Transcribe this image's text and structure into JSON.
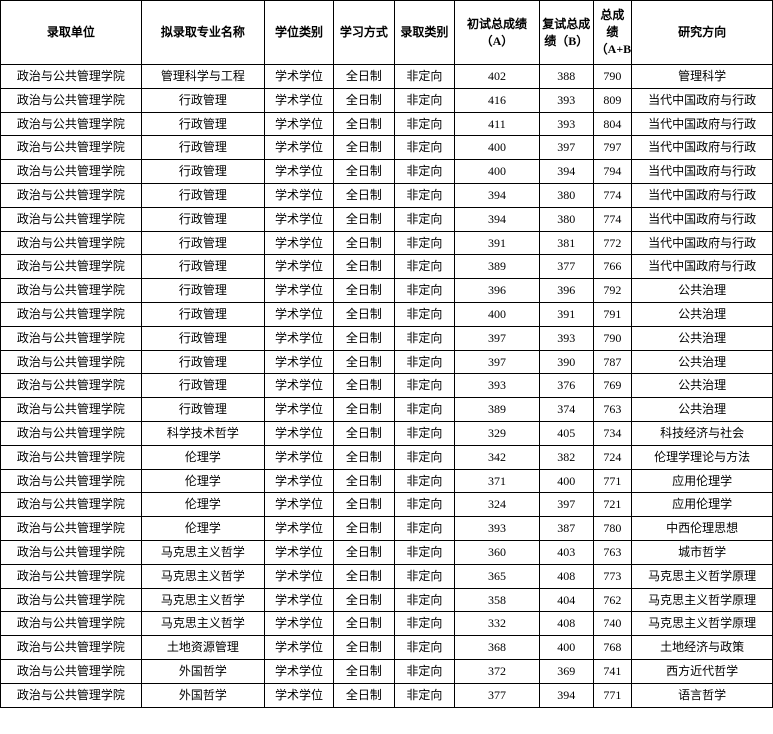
{
  "headers": {
    "dept": "录取单位",
    "major": "拟录取专业名称",
    "degree": "学位类别",
    "mode": "学习方式",
    "type": "录取类别",
    "a": "初试总成绩（A）",
    "b": "复试总成绩（B）",
    "ab": "总成绩（A+B）",
    "dir": "研究方向"
  },
  "rows": [
    {
      "dept": "政治与公共管理学院",
      "major": "管理科学与工程",
      "degree": "学术学位",
      "mode": "全日制",
      "type": "非定向",
      "a": "402",
      "b": "388",
      "ab": "790",
      "dir": "管理科学"
    },
    {
      "dept": "政治与公共管理学院",
      "major": "行政管理",
      "degree": "学术学位",
      "mode": "全日制",
      "type": "非定向",
      "a": "416",
      "b": "393",
      "ab": "809",
      "dir": "当代中国政府与行政"
    },
    {
      "dept": "政治与公共管理学院",
      "major": "行政管理",
      "degree": "学术学位",
      "mode": "全日制",
      "type": "非定向",
      "a": "411",
      "b": "393",
      "ab": "804",
      "dir": "当代中国政府与行政"
    },
    {
      "dept": "政治与公共管理学院",
      "major": "行政管理",
      "degree": "学术学位",
      "mode": "全日制",
      "type": "非定向",
      "a": "400",
      "b": "397",
      "ab": "797",
      "dir": "当代中国政府与行政"
    },
    {
      "dept": "政治与公共管理学院",
      "major": "行政管理",
      "degree": "学术学位",
      "mode": "全日制",
      "type": "非定向",
      "a": "400",
      "b": "394",
      "ab": "794",
      "dir": "当代中国政府与行政"
    },
    {
      "dept": "政治与公共管理学院",
      "major": "行政管理",
      "degree": "学术学位",
      "mode": "全日制",
      "type": "非定向",
      "a": "394",
      "b": "380",
      "ab": "774",
      "dir": "当代中国政府与行政"
    },
    {
      "dept": "政治与公共管理学院",
      "major": "行政管理",
      "degree": "学术学位",
      "mode": "全日制",
      "type": "非定向",
      "a": "394",
      "b": "380",
      "ab": "774",
      "dir": "当代中国政府与行政"
    },
    {
      "dept": "政治与公共管理学院",
      "major": "行政管理",
      "degree": "学术学位",
      "mode": "全日制",
      "type": "非定向",
      "a": "391",
      "b": "381",
      "ab": "772",
      "dir": "当代中国政府与行政"
    },
    {
      "dept": "政治与公共管理学院",
      "major": "行政管理",
      "degree": "学术学位",
      "mode": "全日制",
      "type": "非定向",
      "a": "389",
      "b": "377",
      "ab": "766",
      "dir": "当代中国政府与行政"
    },
    {
      "dept": "政治与公共管理学院",
      "major": "行政管理",
      "degree": "学术学位",
      "mode": "全日制",
      "type": "非定向",
      "a": "396",
      "b": "396",
      "ab": "792",
      "dir": "公共治理"
    },
    {
      "dept": "政治与公共管理学院",
      "major": "行政管理",
      "degree": "学术学位",
      "mode": "全日制",
      "type": "非定向",
      "a": "400",
      "b": "391",
      "ab": "791",
      "dir": "公共治理"
    },
    {
      "dept": "政治与公共管理学院",
      "major": "行政管理",
      "degree": "学术学位",
      "mode": "全日制",
      "type": "非定向",
      "a": "397",
      "b": "393",
      "ab": "790",
      "dir": "公共治理"
    },
    {
      "dept": "政治与公共管理学院",
      "major": "行政管理",
      "degree": "学术学位",
      "mode": "全日制",
      "type": "非定向",
      "a": "397",
      "b": "390",
      "ab": "787",
      "dir": "公共治理"
    },
    {
      "dept": "政治与公共管理学院",
      "major": "行政管理",
      "degree": "学术学位",
      "mode": "全日制",
      "type": "非定向",
      "a": "393",
      "b": "376",
      "ab": "769",
      "dir": "公共治理"
    },
    {
      "dept": "政治与公共管理学院",
      "major": "行政管理",
      "degree": "学术学位",
      "mode": "全日制",
      "type": "非定向",
      "a": "389",
      "b": "374",
      "ab": "763",
      "dir": "公共治理"
    },
    {
      "dept": "政治与公共管理学院",
      "major": "科学技术哲学",
      "degree": "学术学位",
      "mode": "全日制",
      "type": "非定向",
      "a": "329",
      "b": "405",
      "ab": "734",
      "dir": "科技经济与社会"
    },
    {
      "dept": "政治与公共管理学院",
      "major": "伦理学",
      "degree": "学术学位",
      "mode": "全日制",
      "type": "非定向",
      "a": "342",
      "b": "382",
      "ab": "724",
      "dir": "伦理学理论与方法"
    },
    {
      "dept": "政治与公共管理学院",
      "major": "伦理学",
      "degree": "学术学位",
      "mode": "全日制",
      "type": "非定向",
      "a": "371",
      "b": "400",
      "ab": "771",
      "dir": "应用伦理学"
    },
    {
      "dept": "政治与公共管理学院",
      "major": "伦理学",
      "degree": "学术学位",
      "mode": "全日制",
      "type": "非定向",
      "a": "324",
      "b": "397",
      "ab": "721",
      "dir": "应用伦理学"
    },
    {
      "dept": "政治与公共管理学院",
      "major": "伦理学",
      "degree": "学术学位",
      "mode": "全日制",
      "type": "非定向",
      "a": "393",
      "b": "387",
      "ab": "780",
      "dir": "中西伦理思想"
    },
    {
      "dept": "政治与公共管理学院",
      "major": "马克思主义哲学",
      "degree": "学术学位",
      "mode": "全日制",
      "type": "非定向",
      "a": "360",
      "b": "403",
      "ab": "763",
      "dir": "城市哲学"
    },
    {
      "dept": "政治与公共管理学院",
      "major": "马克思主义哲学",
      "degree": "学术学位",
      "mode": "全日制",
      "type": "非定向",
      "a": "365",
      "b": "408",
      "ab": "773",
      "dir": "马克思主义哲学原理"
    },
    {
      "dept": "政治与公共管理学院",
      "major": "马克思主义哲学",
      "degree": "学术学位",
      "mode": "全日制",
      "type": "非定向",
      "a": "358",
      "b": "404",
      "ab": "762",
      "dir": "马克思主义哲学原理"
    },
    {
      "dept": "政治与公共管理学院",
      "major": "马克思主义哲学",
      "degree": "学术学位",
      "mode": "全日制",
      "type": "非定向",
      "a": "332",
      "b": "408",
      "ab": "740",
      "dir": "马克思主义哲学原理"
    },
    {
      "dept": "政治与公共管理学院",
      "major": "土地资源管理",
      "degree": "学术学位",
      "mode": "全日制",
      "type": "非定向",
      "a": "368",
      "b": "400",
      "ab": "768",
      "dir": "土地经济与政策"
    },
    {
      "dept": "政治与公共管理学院",
      "major": "外国哲学",
      "degree": "学术学位",
      "mode": "全日制",
      "type": "非定向",
      "a": "372",
      "b": "369",
      "ab": "741",
      "dir": "西方近代哲学"
    },
    {
      "dept": "政治与公共管理学院",
      "major": "外国哲学",
      "degree": "学术学位",
      "mode": "全日制",
      "type": "非定向",
      "a": "377",
      "b": "394",
      "ab": "771",
      "dir": "语言哲学"
    }
  ]
}
